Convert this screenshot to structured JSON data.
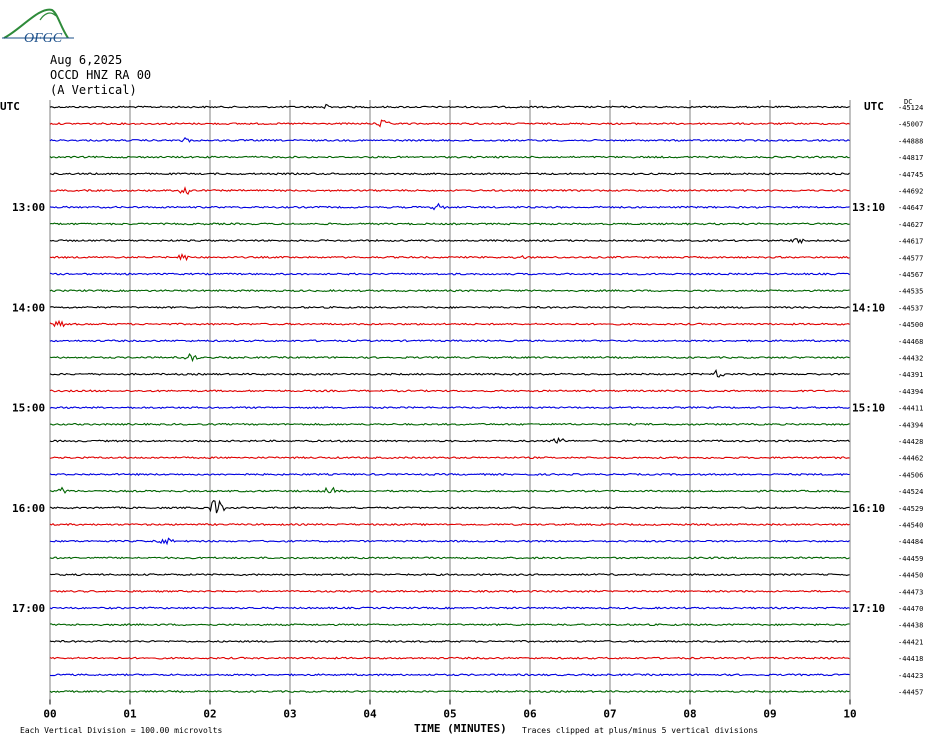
{
  "header": {
    "date": "Aug 6,2025",
    "station": "OCCD HNZ RA 00",
    "component": "(A Vertical)"
  },
  "logo": {
    "text": "OFGC",
    "color": "#1b4f8a",
    "swoosh_color": "#2e8b3a"
  },
  "chart_data": {
    "type": "line",
    "xlabel": "TIME (MINUTES)",
    "xlim": [
      0,
      10
    ],
    "x_ticks": [
      "00",
      "01",
      "02",
      "03",
      "04",
      "05",
      "06",
      "07",
      "08",
      "09",
      "10"
    ],
    "left_unit": "UTC",
    "right_unit": "UTC",
    "dc_label": "DC",
    "left_hour_labels": [
      {
        "row": 6,
        "label": "13:00"
      },
      {
        "row": 12,
        "label": "14:00"
      },
      {
        "row": 18,
        "label": "15:00"
      },
      {
        "row": 24,
        "label": "16:00"
      },
      {
        "row": 30,
        "label": "17:00"
      }
    ],
    "right_hour_labels": [
      {
        "row": 6,
        "label": "13:10"
      },
      {
        "row": 12,
        "label": "14:10"
      },
      {
        "row": 18,
        "label": "15:10"
      },
      {
        "row": 24,
        "label": "16:10"
      },
      {
        "row": 30,
        "label": "17:10"
      }
    ],
    "trace_colors": [
      "#000000",
      "#e00000",
      "#0000e0",
      "#006400"
    ],
    "series": [
      {
        "dc": "-45124"
      },
      {
        "dc": "-45007"
      },
      {
        "dc": "-44888"
      },
      {
        "dc": "-44817"
      },
      {
        "dc": "-44745"
      },
      {
        "dc": "-44692"
      },
      {
        "dc": "-44647"
      },
      {
        "dc": "-44627"
      },
      {
        "dc": "-44617"
      },
      {
        "dc": "-44577"
      },
      {
        "dc": "-44567"
      },
      {
        "dc": "-44535"
      },
      {
        "dc": "-44537"
      },
      {
        "dc": "-44500"
      },
      {
        "dc": "-44468"
      },
      {
        "dc": "-44432"
      },
      {
        "dc": "-44391"
      },
      {
        "dc": "-44394"
      },
      {
        "dc": "-44411"
      },
      {
        "dc": "-44394"
      },
      {
        "dc": "-44428"
      },
      {
        "dc": "-44462"
      },
      {
        "dc": "-44506"
      },
      {
        "dc": "-44524"
      },
      {
        "dc": "-44529"
      },
      {
        "dc": "-44540"
      },
      {
        "dc": "-44484"
      },
      {
        "dc": "-44459"
      },
      {
        "dc": "-44450"
      },
      {
        "dc": "-44473"
      },
      {
        "dc": "-44470"
      },
      {
        "dc": "-44438"
      },
      {
        "dc": "-44421"
      },
      {
        "dc": "-44418"
      },
      {
        "dc": "-44423"
      },
      {
        "dc": "-44457"
      }
    ],
    "events": [
      {
        "row": 0,
        "x": 3.45,
        "amp": 3
      },
      {
        "row": 1,
        "x": 4.15,
        "amp": 4
      },
      {
        "row": 2,
        "x": 1.68,
        "amp": 3
      },
      {
        "row": 5,
        "x": 1.7,
        "amp": 6
      },
      {
        "row": 6,
        "x": 4.85,
        "amp": 4
      },
      {
        "row": 8,
        "x": 9.35,
        "amp": 4
      },
      {
        "row": 9,
        "x": 1.65,
        "amp": 5
      },
      {
        "row": 9,
        "x": 5.85,
        "amp": 3
      },
      {
        "row": 13,
        "x": 0.1,
        "amp": 4
      },
      {
        "row": 15,
        "x": 1.75,
        "amp": 5
      },
      {
        "row": 16,
        "x": 8.35,
        "amp": 4
      },
      {
        "row": 20,
        "x": 6.35,
        "amp": 4
      },
      {
        "row": 23,
        "x": 0.15,
        "amp": 4
      },
      {
        "row": 23,
        "x": 3.5,
        "amp": 4
      },
      {
        "row": 24,
        "x": 2.08,
        "amp": 11
      },
      {
        "row": 26,
        "x": 1.45,
        "amp": 4
      }
    ],
    "footer_left": "Each Vertical Division =  100.00 microvolts",
    "footer_right": "Traces clipped at plus/minus 5 vertical divisions"
  }
}
